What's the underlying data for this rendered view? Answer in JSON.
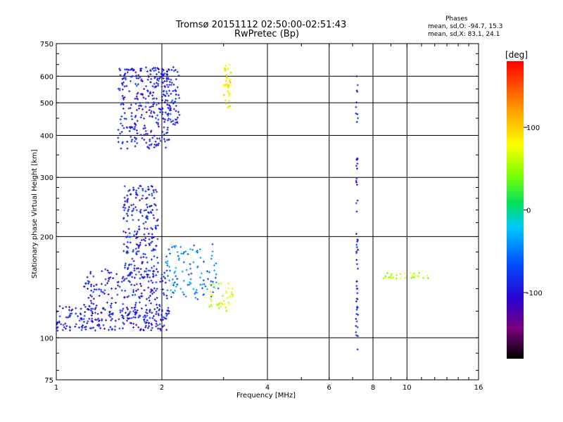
{
  "header": {
    "title_line1": "Tromsø 20151112 02:50:00-02:51:43",
    "title_line2": "RwPretec (Bp)",
    "phases_heading": "Phases",
    "stat_o": "mean, sd,O: -94.7, 15.3",
    "stat_x": "mean, sd,X:  83.1, 24.1"
  },
  "colorbar": {
    "label": "[deg]",
    "ticks": [
      "100",
      "0",
      "-100"
    ],
    "tick_values": [
      100,
      0,
      -100
    ],
    "range": [
      -180,
      180
    ]
  },
  "chart_data": {
    "type": "scatter",
    "title": "Tromsø 20151112 02:50:00-02:51:43",
    "subtitle": "RwPretec (Bp)",
    "xlabel": "Frequency [MHz]",
    "ylabel": "Stationary phase Virtual Height [km]",
    "x_scale": "log",
    "y_scale": "log",
    "xlim": [
      1,
      16
    ],
    "ylim": [
      75,
      750
    ],
    "x_ticks": [
      1,
      2,
      4,
      6,
      8,
      10,
      16
    ],
    "x_tick_labels": [
      "1",
      "2",
      "4",
      "6",
      "8",
      "10",
      "16"
    ],
    "y_ticks": [
      75,
      100,
      200,
      300,
      400,
      500,
      600,
      750
    ],
    "y_tick_labels": [
      "75",
      "100",
      "200",
      "300",
      "400",
      "500",
      "600",
      "750"
    ],
    "grid": true,
    "color_encodes": "phase [deg]",
    "clusters": [
      {
        "desc": "E-layer O trace",
        "x_range": [
          1.0,
          2.1
        ],
        "h_range": [
          105,
          125
        ],
        "phase": -95,
        "n": 260
      },
      {
        "desc": "F1 ridge",
        "x_range": [
          1.2,
          2.1
        ],
        "h_range": [
          125,
          160
        ],
        "phase": -95,
        "n": 150
      },
      {
        "desc": "F-layer low O",
        "x_range": [
          1.55,
          1.95
        ],
        "h_range": [
          150,
          285
        ],
        "phase": -90,
        "n": 230
      },
      {
        "desc": "F-layer high O",
        "x_range": [
          1.5,
          2.1
        ],
        "h_range": [
          365,
          640
        ],
        "phase": -95,
        "n": 300
      },
      {
        "desc": "high O right column",
        "x_range": [
          2.0,
          2.25
        ],
        "h_range": [
          430,
          640
        ],
        "phase": -88,
        "n": 80
      },
      {
        "desc": "mid cluster",
        "x_range": [
          2.05,
          2.9
        ],
        "h_range": [
          130,
          190
        ],
        "phase": -50,
        "n": 110
      },
      {
        "desc": "X trace",
        "x_range": [
          2.7,
          3.2
        ],
        "h_range": [
          120,
          145
        ],
        "phase": 70,
        "n": 40
      },
      {
        "desc": "X trace high",
        "x_range": [
          3.0,
          3.15
        ],
        "h_range": [
          480,
          650
        ],
        "phase": 85,
        "n": 45
      },
      {
        "desc": "interference line 7.2 MHz",
        "x_range": [
          7.15,
          7.25
        ],
        "h_range": [
          90,
          620
        ],
        "phase": -95,
        "n": 60
      },
      {
        "desc": "right cluster",
        "x_range": [
          8.5,
          11.5
        ],
        "h_range": [
          150,
          156
        ],
        "phase": 60,
        "n": 30
      }
    ]
  }
}
